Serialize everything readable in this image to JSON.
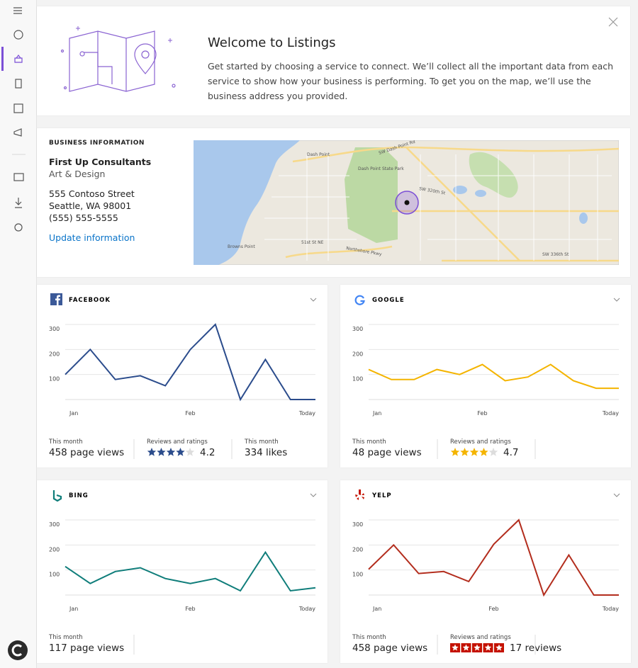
{
  "welcome": {
    "title": "Welcome to Listings",
    "body": "Get started by choosing a service to connect. We’ll collect all the important data from each service to show how your business is performing. To get you on the map, we’ll use the business address you provided."
  },
  "business": {
    "heading": "BUSINESS INFORMATION",
    "name": "First Up Consultants",
    "category": "Art & Design",
    "address": [
      "555 Contoso Street",
      "Seattle, WA 98001",
      "(555) 555-5555"
    ],
    "link": "Update information",
    "map_labels": [
      "Dash Point",
      "Dash Point State Park",
      "SW Dash Point Rd",
      "SW 320th St",
      "Browns Point",
      "51st St NE",
      "Northshore Pkwy",
      "SW 336th St"
    ]
  },
  "chart_data": [
    {
      "type": "line",
      "title": "FACEBOOK",
      "color": "#2b4c8c",
      "categories": [
        "Jan",
        null,
        null,
        null,
        null,
        "Feb",
        null,
        null,
        null,
        null,
        "Today"
      ],
      "values": [
        100,
        200,
        80,
        95,
        55,
        200,
        300,
        0,
        160,
        0,
        0
      ],
      "ylim": [
        0,
        300
      ],
      "yticks": [
        100,
        200,
        300
      ],
      "grid": true,
      "stats": [
        {
          "label": "This month",
          "value": "458 page views"
        },
        {
          "label": "Reviews and ratings",
          "value": "4.2"
        },
        {
          "label": "This month",
          "value": "334 likes"
        }
      ]
    },
    {
      "type": "line",
      "title": "GOOGLE",
      "color": "#f4b400",
      "categories": [
        "Jan",
        null,
        null,
        null,
        null,
        "Feb",
        null,
        null,
        null,
        null,
        null,
        "Today"
      ],
      "values": [
        120,
        80,
        80,
        120,
        100,
        140,
        75,
        90,
        140,
        75,
        45,
        45
      ],
      "ylim": [
        0,
        300
      ],
      "yticks": [
        100,
        200,
        300
      ],
      "grid": true,
      "stats": [
        {
          "label": "This month",
          "value": "48 page views"
        },
        {
          "label": "Reviews and ratings",
          "value": "4.7"
        }
      ]
    },
    {
      "type": "line",
      "title": "BING",
      "color": "#0f7d7a",
      "categories": [
        "Jan",
        null,
        null,
        null,
        null,
        "Feb",
        null,
        null,
        null,
        null,
        "Today"
      ],
      "values": [
        114,
        46,
        94,
        109,
        66,
        46,
        66,
        17,
        171,
        17,
        29
      ],
      "ylim": [
        0,
        300
      ],
      "yticks": [
        100,
        200,
        300
      ],
      "grid": true,
      "stats": [
        {
          "label": "This month",
          "value": "117 page views"
        }
      ]
    },
    {
      "type": "line",
      "title": "YELP",
      "color": "#b32d1d",
      "categories": [
        "Jan",
        null,
        null,
        null,
        null,
        "Feb",
        null,
        null,
        null,
        null,
        "Today"
      ],
      "values": [
        103,
        200,
        86,
        94,
        54,
        203,
        300,
        0,
        160,
        0,
        0
      ],
      "ylim": [
        0,
        300
      ],
      "yticks": [
        100,
        200,
        300
      ],
      "grid": true,
      "stats": [
        {
          "label": "This month",
          "value": "458 page views"
        },
        {
          "label": "Reviews and ratings",
          "value": "17 reviews"
        }
      ]
    }
  ]
}
